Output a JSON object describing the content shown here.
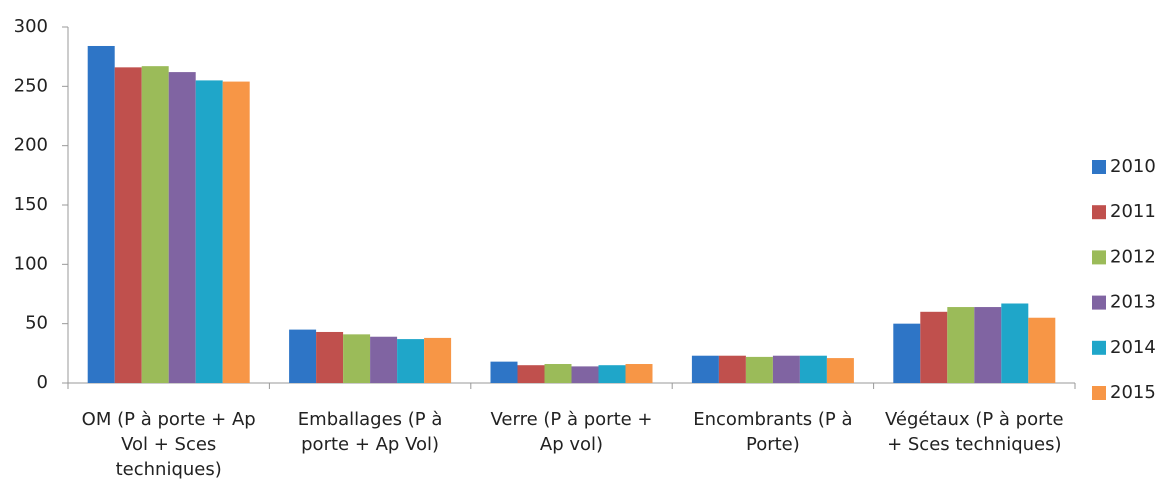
{
  "chart_data": {
    "type": "bar",
    "categories": [
      "OM (P à porte + Ap Vol + Sces techniques)",
      "Emballages (P à porte + Ap Vol)",
      "Verre (P à porte + Ap vol)",
      "Encombrants (P à Porte)",
      "Végétaux (P à porte + Sces techniques)"
    ],
    "series": [
      {
        "name": "2010",
        "color": "#2e75c6",
        "values": [
          284,
          45,
          18,
          23,
          50
        ]
      },
      {
        "name": "2011",
        "color": "#c0504d",
        "values": [
          266,
          43,
          15,
          23,
          60
        ]
      },
      {
        "name": "2012",
        "color": "#9bbb59",
        "values": [
          267,
          41,
          16,
          22,
          64
        ]
      },
      {
        "name": "2013",
        "color": "#8064a2",
        "values": [
          262,
          39,
          14,
          23,
          64
        ]
      },
      {
        "name": "2014",
        "color": "#1fa6c9",
        "values": [
          255,
          37,
          15,
          23,
          67
        ]
      },
      {
        "name": "2015",
        "color": "#f79646",
        "values": [
          254,
          38,
          16,
          21,
          55
        ]
      }
    ],
    "ylim": [
      0,
      300
    ],
    "yticks": [
      0,
      50,
      100,
      150,
      200,
      250,
      300
    ],
    "grid": false,
    "legend": "right"
  }
}
